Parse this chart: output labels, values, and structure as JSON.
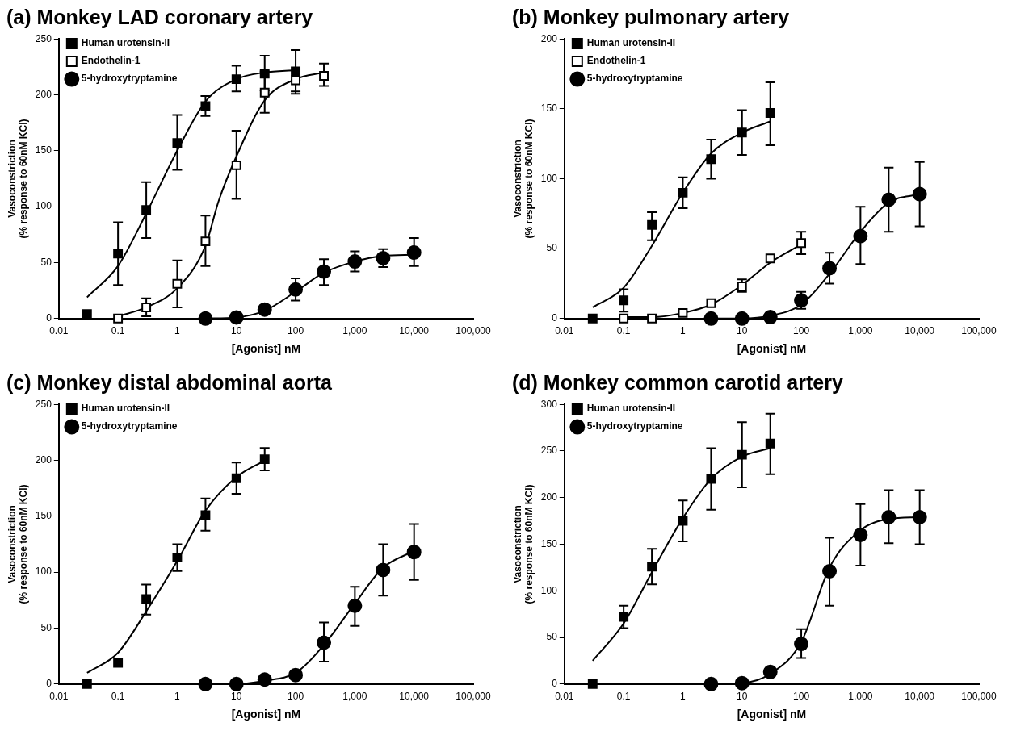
{
  "chart_data": [
    {
      "type": "scatter",
      "title": "(a) Monkey LAD coronary artery",
      "xlabel": "[Agonist] nM",
      "ylabel": "Vasoconstriction\n(% response to 60nM KCl)",
      "log": "x",
      "xlim": [
        0.01,
        100000
      ],
      "xticks": [
        0.01,
        0.1,
        1,
        10,
        100,
        {
          "value": 1000,
          "label": "1,000"
        },
        {
          "value": 10000,
          "label": "10,000"
        },
        {
          "value": 100000,
          "label": "100,000"
        }
      ],
      "ylim": [
        0,
        250
      ],
      "yticks": [
        0,
        50,
        100,
        150,
        200,
        250
      ],
      "legend": "top left",
      "grid": false,
      "series": [
        {
          "name": "Human urotensin-II",
          "color": "#000000",
          "marker": "square",
          "x": [
            0.03,
            0.1,
            0.3,
            1,
            3,
            10,
            30,
            100
          ],
          "values": [
            4,
            58,
            97,
            157,
            190,
            214,
            219,
            221
          ],
          "errors": [
            null,
            [
              30,
              86
            ],
            [
              72,
              122
            ],
            [
              133,
              182
            ],
            [
              181,
              199
            ],
            [
              203,
              226
            ],
            [
              204,
              235
            ],
            [
              203,
              240
            ]
          ]
        },
        {
          "name": "Endothelin-1",
          "color": "#ffffff",
          "marker": "square",
          "x": [
            0.1,
            0.3,
            1,
            3,
            10,
            30,
            100,
            300
          ],
          "values": [
            0,
            10,
            31,
            69,
            137,
            202,
            213,
            217
          ],
          "errors": [
            null,
            [
              2,
              18
            ],
            [
              10,
              52
            ],
            [
              47,
              92
            ],
            [
              107,
              168
            ],
            [
              184,
              221
            ],
            [
              201,
              213
            ],
            [
              208,
              228
            ]
          ]
        },
        {
          "name": "5-hydroxytryptamine",
          "color": "#000000",
          "marker": "circle",
          "x": [
            3,
            10,
            30,
            100,
            300,
            1000,
            3000,
            10000
          ],
          "values": [
            0,
            1,
            8,
            26,
            42,
            51,
            54,
            59
          ],
          "errors": [
            null,
            null,
            null,
            [
              16,
              36
            ],
            [
              30,
              53
            ],
            [
              42,
              60
            ],
            [
              46,
              62
            ],
            [
              47,
              72
            ]
          ]
        },
        {
          "type": "line",
          "color": "#000000",
          "marker": "none",
          "x": [
            0.03,
            0.1,
            0.3,
            1,
            3,
            10,
            30,
            100
          ],
          "values": [
            19,
            47,
            94,
            150,
            194,
            214,
            220,
            222
          ]
        },
        {
          "type": "line",
          "color": "#000000",
          "marker": "none",
          "x": [
            0.1,
            0.3,
            1,
            3,
            5,
            10,
            30,
            100,
            300
          ],
          "values": [
            2,
            10,
            27,
            65,
            105,
            145,
            195,
            214,
            220
          ]
        },
        {
          "type": "line",
          "color": "#000000",
          "marker": "none",
          "x": [
            3,
            10,
            30,
            100,
            300,
            1000,
            3000,
            10000
          ],
          "values": [
            0,
            1,
            7,
            24,
            41,
            51,
            56,
            57
          ]
        }
      ]
    },
    {
      "type": "scatter",
      "title": "(b) Monkey pulmonary artery",
      "xlabel": "[Agonist] nM",
      "ylabel": "Vasoconstriction\n(% response to 60nM KCl)",
      "log": "x",
      "xlim": [
        0.01,
        100000
      ],
      "xticks": [
        0.01,
        0.1,
        1,
        10,
        100,
        {
          "value": 1000,
          "label": "1,000"
        },
        {
          "value": 10000,
          "label": "10,000"
        },
        {
          "value": 100000,
          "label": "100,000"
        }
      ],
      "ylim": [
        0,
        200
      ],
      "yticks": [
        0,
        50,
        100,
        150,
        200
      ],
      "legend": "top left",
      "grid": false,
      "series": [
        {
          "name": "Human urotensin-II",
          "color": "#000000",
          "marker": "square",
          "x": [
            0.03,
            0.1,
            0.3,
            1,
            3,
            10,
            30
          ],
          "values": [
            0,
            13,
            67,
            90,
            114,
            133,
            147
          ],
          "errors": [
            null,
            [
              5,
              21
            ],
            [
              56,
              76
            ],
            [
              79,
              101
            ],
            [
              100,
              128
            ],
            [
              117,
              149
            ],
            [
              124,
              169
            ]
          ]
        },
        {
          "name": "Endothelin-1",
          "color": "#ffffff",
          "marker": "square",
          "x": [
            0.1,
            0.3,
            1,
            3,
            10,
            30,
            100
          ],
          "values": [
            0,
            0,
            4,
            11,
            23,
            43,
            54
          ],
          "errors": [
            null,
            null,
            null,
            null,
            [
              19,
              28
            ],
            null,
            [
              46,
              62
            ]
          ]
        },
        {
          "name": "5-hydroxytryptamine",
          "color": "#000000",
          "marker": "circle",
          "x": [
            3,
            10,
            30,
            100,
            300,
            1000,
            3000,
            10000
          ],
          "values": [
            0,
            0,
            1,
            13,
            36,
            59,
            85,
            89
          ],
          "errors": [
            null,
            null,
            null,
            [
              7,
              19
            ],
            [
              25,
              47
            ],
            [
              39,
              80
            ],
            [
              62,
              108
            ],
            [
              66,
              112
            ]
          ]
        },
        {
          "type": "line",
          "color": "#000000",
          "marker": "none",
          "x": [
            0.03,
            0.1,
            0.3,
            1,
            3,
            10,
            30
          ],
          "values": [
            8,
            22,
            52,
            90,
            118,
            133,
            141
          ]
        },
        {
          "type": "line",
          "color": "#000000",
          "marker": "none",
          "x": [
            0.1,
            0.3,
            1,
            3,
            10,
            30,
            100
          ],
          "values": [
            1,
            1,
            4,
            10,
            24,
            40,
            53
          ]
        },
        {
          "type": "line",
          "color": "#000000",
          "marker": "none",
          "x": [
            3,
            10,
            30,
            100,
            300,
            1000,
            3000,
            10000
          ],
          "values": [
            0,
            0,
            2,
            10,
            32,
            62,
            83,
            89
          ]
        }
      ]
    },
    {
      "type": "scatter",
      "title": "(c) Monkey distal abdominal aorta",
      "xlabel": "[Agonist] nM",
      "ylabel": "Vasoconstriction\n(% response to 60nM KCl)",
      "log": "x",
      "xlim": [
        0.01,
        100000
      ],
      "xticks": [
        0.01,
        0.1,
        1,
        10,
        100,
        {
          "value": 1000,
          "label": "1,000"
        },
        {
          "value": 10000,
          "label": "10,000"
        },
        {
          "value": 100000,
          "label": "100,000"
        }
      ],
      "ylim": [
        0,
        250
      ],
      "yticks": [
        0,
        50,
        100,
        150,
        200,
        250
      ],
      "legend": "top left",
      "grid": false,
      "series": [
        {
          "name": "Human urotensin-II",
          "color": "#000000",
          "marker": "square",
          "x": [
            0.03,
            0.1,
            0.3,
            1,
            3,
            10,
            30
          ],
          "values": [
            0,
            19,
            76,
            113,
            151,
            184,
            201
          ],
          "errors": [
            null,
            null,
            [
              62,
              89
            ],
            [
              101,
              125
            ],
            [
              137,
              166
            ],
            [
              170,
              198
            ],
            [
              191,
              211
            ]
          ]
        },
        {
          "name": "5-hydroxytryptamine",
          "color": "#000000",
          "marker": "circle",
          "x": [
            3,
            10,
            30,
            100,
            300,
            1000,
            3000,
            10000
          ],
          "values": [
            0,
            0,
            4,
            8,
            37,
            70,
            102,
            118
          ],
          "errors": [
            null,
            null,
            null,
            null,
            [
              20,
              55
            ],
            [
              52,
              87
            ],
            [
              79,
              125
            ],
            [
              93,
              143
            ]
          ]
        },
        {
          "type": "line",
          "color": "#000000",
          "marker": "none",
          "x": [
            0.03,
            0.1,
            0.3,
            1,
            3,
            10,
            30
          ],
          "values": [
            10,
            28,
            65,
            110,
            155,
            185,
            200
          ]
        },
        {
          "type": "line",
          "color": "#000000",
          "marker": "none",
          "x": [
            3,
            10,
            30,
            100,
            300,
            1000,
            3000,
            10000
          ],
          "values": [
            0,
            0,
            3,
            10,
            35,
            72,
            104,
            119
          ]
        }
      ]
    },
    {
      "type": "scatter",
      "title": "(d) Monkey common carotid artery",
      "xlabel": "[Agonist] nM",
      "ylabel": "Vasoconstriction\n(% response to 60nM KCl)",
      "log": "x",
      "xlim": [
        0.01,
        100000
      ],
      "xticks": [
        0.01,
        0.1,
        1,
        10,
        100,
        {
          "value": 1000,
          "label": "1,000"
        },
        {
          "value": 10000,
          "label": "10,000"
        },
        {
          "value": 100000,
          "label": "100,000"
        }
      ],
      "ylim": [
        0,
        300
      ],
      "yticks": [
        0,
        50,
        100,
        150,
        200,
        250,
        300
      ],
      "legend": "top left",
      "grid": false,
      "series": [
        {
          "name": "Human urotensin-II",
          "color": "#000000",
          "marker": "square",
          "x": [
            0.03,
            0.1,
            0.3,
            1,
            3,
            10,
            30
          ],
          "values": [
            0,
            72,
            126,
            175,
            220,
            246,
            258
          ],
          "errors": [
            null,
            [
              60,
              84
            ],
            [
              107,
              145
            ],
            [
              153,
              197
            ],
            [
              187,
              253
            ],
            [
              211,
              281
            ],
            [
              225,
              290
            ]
          ]
        },
        {
          "name": "5-hydroxytryptamine",
          "color": "#000000",
          "marker": "circle",
          "x": [
            3,
            10,
            30,
            100,
            300,
            1000,
            3000,
            10000
          ],
          "values": [
            0,
            1,
            13,
            43,
            121,
            160,
            179,
            179
          ],
          "errors": [
            null,
            null,
            null,
            [
              28,
              59
            ],
            [
              84,
              157
            ],
            [
              127,
              193
            ],
            [
              151,
              208
            ],
            [
              150,
              208
            ]
          ]
        },
        {
          "type": "line",
          "color": "#000000",
          "marker": "none",
          "x": [
            0.03,
            0.1,
            0.3,
            1,
            3,
            10,
            30
          ],
          "values": [
            25,
            65,
            120,
            178,
            220,
            244,
            253
          ]
        },
        {
          "type": "line",
          "color": "#000000",
          "marker": "none",
          "x": [
            3,
            10,
            30,
            100,
            300,
            1000,
            3000,
            10000
          ],
          "values": [
            0,
            1,
            11,
            45,
            125,
            165,
            177,
            179
          ]
        }
      ]
    }
  ]
}
